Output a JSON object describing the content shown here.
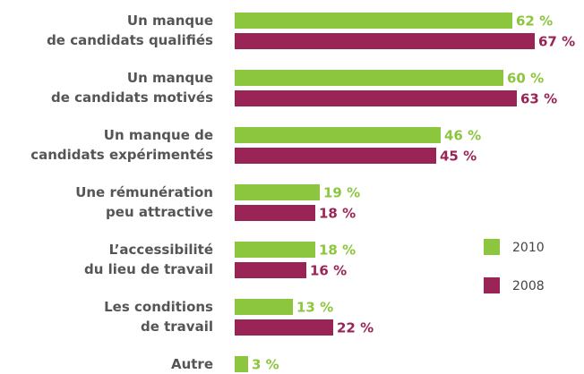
{
  "chart_data": {
    "type": "bar",
    "orientation": "horizontal",
    "categories": [
      "Un manque\nde candidats qualifiés",
      "Un manque\nde candidats motivés",
      "Un manque de\ncandidats expérimentés",
      "Une rémunération\npeu attractive",
      "L’accessibilité\ndu lieu de travail",
      "Les conditions\nde travail",
      "Autre"
    ],
    "series": [
      {
        "name": "2010",
        "color": "#8cc63f",
        "values": [
          62,
          60,
          46,
          19,
          18,
          13,
          3
        ],
        "value_labels": [
          "62 %",
          "60 %",
          "46 %",
          "19 %",
          "18 %",
          "13 %",
          "3 %"
        ]
      },
      {
        "name": "2008",
        "color": "#9b2457",
        "values": [
          67,
          63,
          45,
          18,
          16,
          22,
          null
        ],
        "value_labels": [
          "67 %",
          "63 %",
          "45 %",
          "18 %",
          "16 %",
          "22 %",
          null
        ]
      }
    ]
  }
}
